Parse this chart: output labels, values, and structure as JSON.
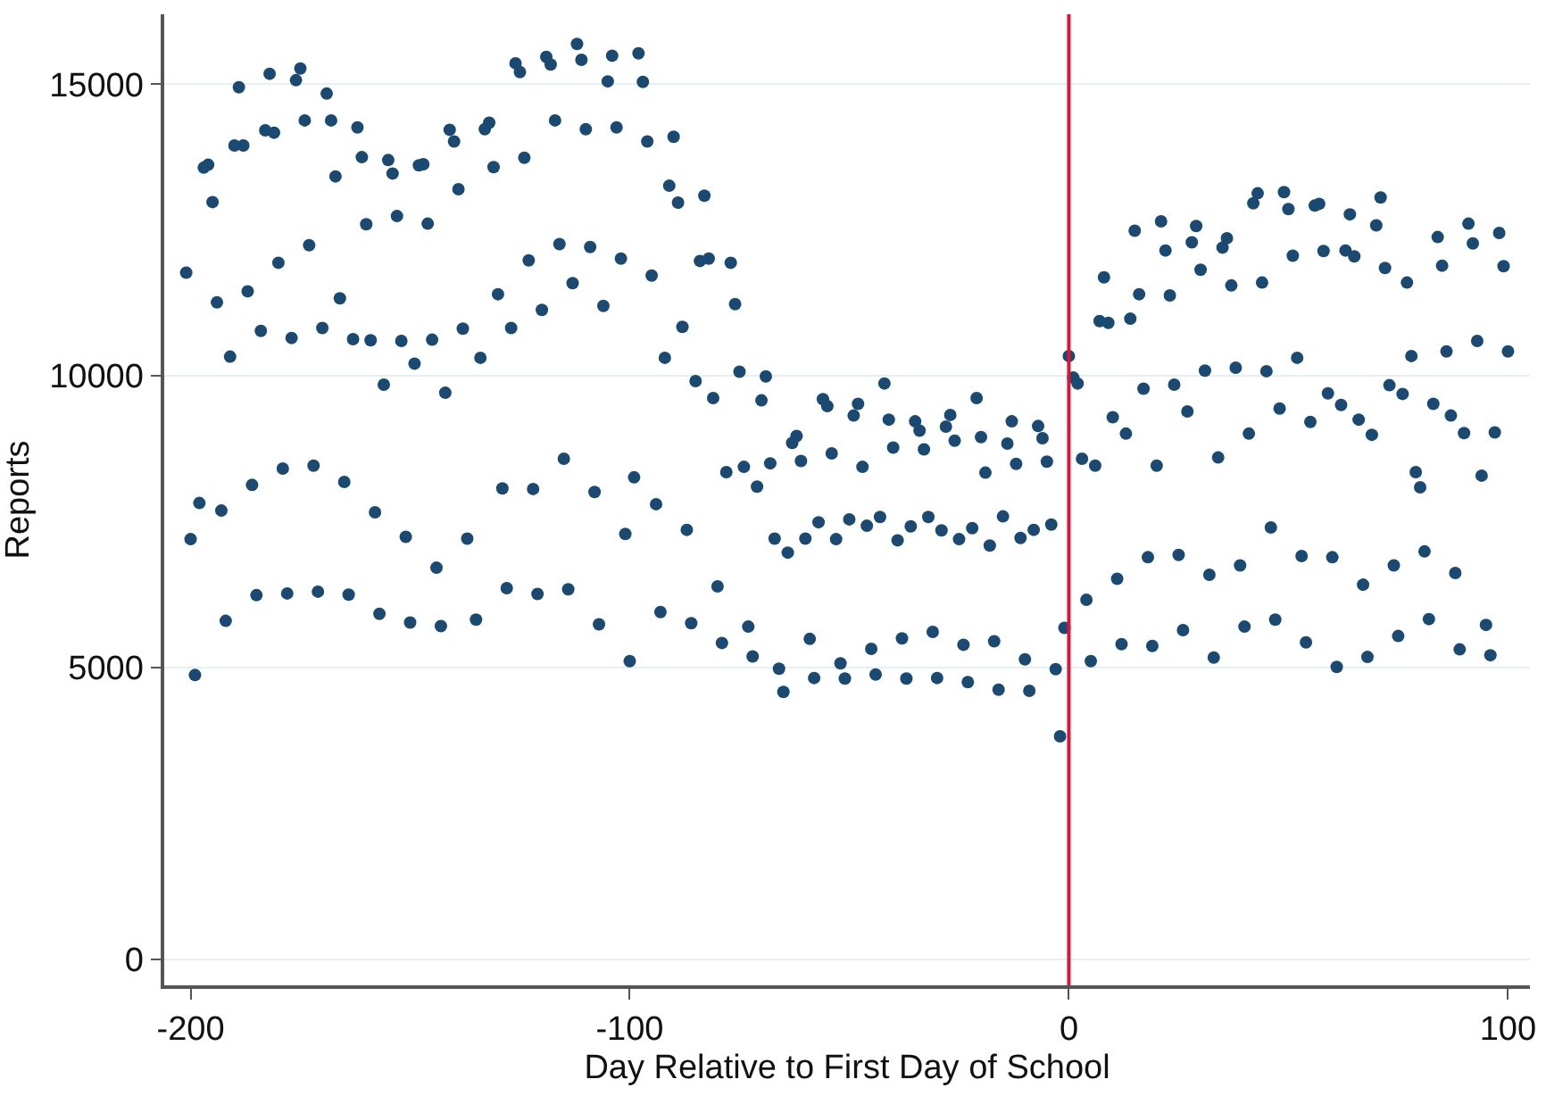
{
  "chart_data": {
    "type": "scatter",
    "xlabel": "Day Relative to First Day of School",
    "ylabel": "Reports",
    "x": [
      -201,
      -200,
      -199,
      -198,
      -197,
      -196,
      -195,
      -194,
      -193,
      -192,
      -191,
      -190,
      -188,
      -189,
      -187,
      -186,
      -185,
      -184,
      -183,
      -181,
      -182,
      -180,
      -179,
      -178,
      -177,
      -176,
      -175,
      -174,
      -173,
      -172,
      -171,
      -170,
      -169,
      -168,
      -167,
      -166,
      -165,
      -164,
      -163,
      -162,
      -161,
      -160,
      -159,
      -158,
      -157,
      -156,
      -155,
      -154,
      -153,
      -152,
      -151,
      -150,
      -149,
      -148,
      -147,
      -146,
      -145,
      -144,
      -143,
      -142,
      -141,
      -140,
      -139,
      -138,
      -137,
      -135,
      -134,
      -133,
      -132,
      -131,
      -130,
      -129,
      -128,
      -127,
      -126,
      -125,
      -124,
      -123,
      -122,
      -121,
      -120,
      -119,
      -118,
      -117,
      -116,
      -115,
      -114,
      -113,
      -112,
      -111,
      -110,
      -109,
      -108,
      -107,
      -106,
      -105,
      -104,
      -103,
      -102,
      -101,
      -100,
      -99,
      -98,
      -97,
      -96,
      -95,
      -94,
      -93,
      -92,
      -91,
      -90,
      -89,
      -88,
      -87,
      -86,
      -85,
      -84,
      -82,
      -83,
      -81,
      -80,
      -79,
      -78,
      -77,
      -76,
      -75,
      -74,
      -73,
      -72,
      -71,
      -70,
      -69,
      -68,
      -67,
      -66,
      -65,
      -64,
      -63,
      -62,
      -61,
      -60,
      -59,
      -58,
      -57,
      -56,
      -55,
      -54,
      -53,
      -52,
      -51,
      -50,
      -49,
      -48,
      -47,
      -46,
      -45,
      -44,
      -43,
      -42,
      -41,
      -40,
      -39,
      -38,
      -37,
      -36,
      -35,
      -34,
      -33,
      -32,
      -31,
      -30,
      -29,
      -28,
      -27,
      -26,
      -25,
      -24,
      -23,
      -22,
      -21,
      -20,
      -19,
      -18,
      -17,
      -16,
      -15,
      -14,
      -13,
      -12,
      -11,
      -10,
      -9,
      -8,
      -7,
      -6,
      -5,
      -4,
      -3,
      -2,
      -1,
      0,
      1,
      2,
      3,
      4,
      5,
      6,
      7,
      8,
      9,
      10,
      11,
      12,
      13,
      14,
      15,
      16,
      17,
      18,
      19,
      20,
      21,
      22,
      23,
      24,
      25,
      26,
      27,
      28,
      29,
      30,
      31,
      32,
      33,
      34,
      35,
      36,
      37,
      38,
      39,
      40,
      41,
      42,
      43,
      44,
      45,
      46,
      47,
      48,
      49,
      50,
      51,
      52,
      53,
      54,
      55,
      56,
      57,
      58,
      59,
      60,
      61,
      62,
      63,
      64,
      65,
      66,
      67,
      68,
      69,
      70,
      71,
      72,
      73,
      74,
      75,
      76,
      77,
      78,
      79,
      80,
      81,
      82,
      83,
      84,
      85,
      86,
      87,
      88,
      89,
      90,
      91,
      92,
      93,
      94,
      95,
      96,
      97,
      98,
      99,
      100
    ],
    "values": [
      11770,
      7200,
      4870,
      7820,
      13570,
      13620,
      12980,
      11260,
      7690,
      5800,
      10330,
      13950,
      13950,
      14950,
      11450,
      8130,
      6240,
      10770,
      14210,
      14170,
      15180,
      11940,
      8410,
      6270,
      10650,
      15070,
      15270,
      14380,
      12240,
      8460,
      6300,
      10820,
      14840,
      14380,
      13420,
      11330,
      8180,
      6250,
      10630,
      14260,
      13750,
      12600,
      10610,
      7660,
      5920,
      9850,
      13700,
      13470,
      12740,
      10600,
      7240,
      5770,
      10210,
      13610,
      13630,
      12610,
      10620,
      6710,
      5710,
      9710,
      14220,
      14020,
      13200,
      10810,
      7210,
      5820,
      10310,
      14230,
      14340,
      13580,
      11400,
      8070,
      6360,
      10820,
      15360,
      15210,
      13740,
      11980,
      8060,
      6260,
      11130,
      15470,
      15340,
      14380,
      12260,
      8580,
      6340,
      11590,
      15690,
      15420,
      14230,
      12210,
      8010,
      5740,
      11200,
      15050,
      15490,
      14260,
      12010,
      7290,
      5110,
      8260,
      15530,
      15040,
      14020,
      11720,
      7800,
      5950,
      10310,
      13260,
      14100,
      12970,
      10840,
      7360,
      5760,
      9910,
      11970,
      12010,
      13090,
      9620,
      6390,
      5420,
      8350,
      11940,
      11230,
      10070,
      8440,
      5700,
      5190,
      8100,
      9580,
      9990,
      8500,
      7210,
      4980,
      4580,
      6970,
      8850,
      8970,
      8540,
      7210,
      5490,
      4820,
      7490,
      9600,
      9480,
      8670,
      7200,
      5070,
      4810,
      7540,
      9320,
      9520,
      8440,
      7430,
      5320,
      4880,
      7580,
      9870,
      9250,
      8770,
      7180,
      5500,
      4810,
      7420,
      9220,
      9060,
      8740,
      7580,
      5610,
      4820,
      7350,
      9130,
      9330,
      8890,
      7200,
      5390,
      4750,
      7390,
      9620,
      8950,
      8340,
      7090,
      5450,
      4620,
      7590,
      8840,
      9220,
      8490,
      7220,
      5140,
      4600,
      7360,
      9140,
      8930,
      8530,
      7450,
      4970,
      3820,
      5680,
      10340,
      9970,
      9870,
      8580,
      6160,
      5110,
      8460,
      10940,
      11690,
      10910,
      9290,
      6520,
      5400,
      9010,
      10980,
      12490,
      11400,
      9780,
      6890,
      5370,
      8460,
      12650,
      12150,
      11380,
      9850,
      6930,
      5640,
      9390,
      12290,
      12570,
      11820,
      10090,
      6590,
      5170,
      8600,
      12200,
      12360,
      11550,
      10140,
      6750,
      5700,
      9010,
      12960,
      13130,
      11600,
      10080,
      7400,
      5820,
      9440,
      13150,
      12860,
      12060,
      10310,
      6910,
      5430,
      9210,
      12920,
      12950,
      12140,
      9700,
      6890,
      5010,
      9500,
      12150,
      12770,
      12050,
      9250,
      6420,
      5180,
      8990,
      12580,
      13060,
      11850,
      9840,
      6750,
      5540,
      9690,
      11600,
      10340,
      8350,
      8090,
      6990,
      5830,
      9520,
      12380,
      11890,
      10420,
      9320,
      6620,
      5310,
      9020,
      12610,
      12270,
      10600,
      8290,
      5730,
      5210,
      9030,
      12450,
      11880,
      10420
    ],
    "color": "#1a4a72",
    "marker": "circle",
    "xlim": [
      -206,
      105
    ],
    "ylim": [
      -450,
      16200
    ],
    "xticks": [
      -200,
      -100,
      0,
      100
    ],
    "yticks": [
      0,
      5000,
      10000,
      15000
    ],
    "grid": "y",
    "legend": false,
    "ref_lines": [
      {
        "axis": "x",
        "value": 0,
        "color": "#d6173b"
      }
    ]
  }
}
